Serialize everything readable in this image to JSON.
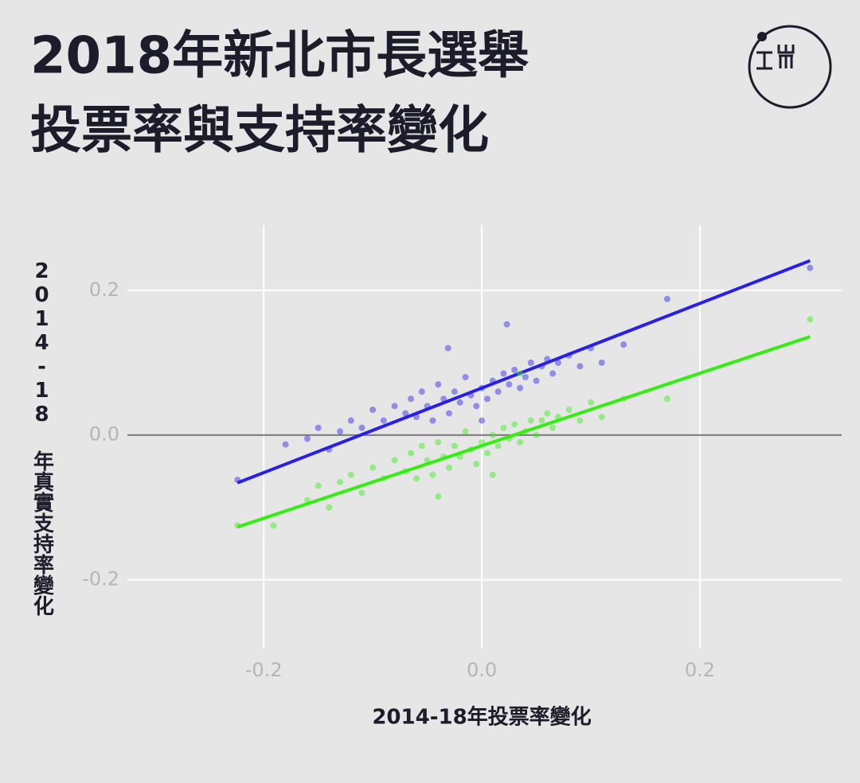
{
  "chart_data": {
    "type": "scatter",
    "title_lines": [
      "2018年新北市長選舉",
      "投票率與支持率變化"
    ],
    "x_label": "2014-18年投票率變化",
    "y_label": "2014-18 年真實支持率變化",
    "xlim": [
      -0.325,
      0.33
    ],
    "ylim": [
      -0.295,
      0.29
    ],
    "xticks": [
      {
        "value": -0.2,
        "label": "-0.2"
      },
      {
        "value": 0,
        "label": "0.0"
      },
      {
        "value": 0.2,
        "label": "0.2"
      }
    ],
    "yticks": [
      {
        "value": -0.2,
        "label": "-0.2"
      },
      {
        "value": 0,
        "label": "0.0"
      },
      {
        "value": 0.2,
        "label": "0.2"
      }
    ],
    "grid": true,
    "series": [
      {
        "color": "#2a1fe6",
        "x": [
          -0.224,
          -0.18,
          -0.16,
          -0.15,
          -0.14,
          -0.13,
          -0.12,
          -0.11,
          -0.1,
          -0.09,
          -0.08,
          -0.07,
          -0.065,
          -0.06,
          -0.055,
          -0.05,
          -0.045,
          -0.04,
          -0.035,
          -0.03,
          -0.025,
          -0.02,
          -0.015,
          -0.01,
          -0.005,
          0,
          0.005,
          0.01,
          0.015,
          0.02,
          0.025,
          0.03,
          0.035,
          0.04,
          0.045,
          0.05,
          0.055,
          0.06,
          0.065,
          0.07,
          0.08,
          0.09,
          0.1,
          0.11,
          0.13,
          0.17,
          0.301,
          0.023,
          -0.031,
          0
        ],
        "y": [
          -0.062,
          -0.013,
          -0.005,
          0.01,
          -0.02,
          0.005,
          0.02,
          0.01,
          0.035,
          0.02,
          0.04,
          0.03,
          0.05,
          0.025,
          0.06,
          0.04,
          0.02,
          0.07,
          0.05,
          0.03,
          0.06,
          0.045,
          0.08,
          0.055,
          0.04,
          0.065,
          0.05,
          0.075,
          0.06,
          0.085,
          0.07,
          0.09,
          0.065,
          0.08,
          0.1,
          0.075,
          0.095,
          0.105,
          0.085,
          0.1,
          0.11,
          0.095,
          0.12,
          0.1,
          0.125,
          0.188,
          0.231,
          0.153,
          0.12,
          0.02
        ],
        "fit_x": [
          -0.224,
          0.301
        ],
        "fit_y": [
          -0.066,
          0.241
        ]
      },
      {
        "color": "#33ee11",
        "x": [
          -0.224,
          -0.191,
          -0.16,
          -0.15,
          -0.14,
          -0.13,
          -0.12,
          -0.11,
          -0.1,
          -0.09,
          -0.08,
          -0.07,
          -0.065,
          -0.06,
          -0.055,
          -0.05,
          -0.045,
          -0.04,
          -0.035,
          -0.03,
          -0.025,
          -0.02,
          -0.015,
          -0.01,
          -0.005,
          0,
          0.005,
          0.01,
          0.015,
          0.02,
          0.025,
          0.03,
          0.035,
          0.04,
          0.045,
          0.05,
          0.055,
          0.06,
          0.065,
          0.07,
          0.08,
          0.09,
          0.1,
          0.11,
          0.13,
          0.17,
          0.301,
          0.035,
          -0.04,
          0.01
        ],
        "y": [
          -0.125,
          -0.125,
          -0.09,
          -0.07,
          -0.1,
          -0.065,
          -0.055,
          -0.08,
          -0.045,
          -0.06,
          -0.035,
          -0.05,
          -0.025,
          -0.06,
          -0.015,
          -0.035,
          -0.055,
          -0.01,
          -0.03,
          -0.045,
          -0.015,
          -0.03,
          0.005,
          -0.02,
          -0.04,
          -0.01,
          -0.025,
          0.0,
          -0.015,
          0.01,
          -0.005,
          0.015,
          -0.01,
          0.005,
          0.02,
          0.0,
          0.02,
          0.03,
          0.01,
          0.025,
          0.035,
          0.02,
          0.045,
          0.025,
          0.05,
          0.05,
          0.16,
          0.085,
          -0.085,
          -0.055
        ],
        "fit_x": [
          -0.224,
          0.301
        ],
        "fit_y": [
          -0.127,
          0.136
        ]
      }
    ]
  }
}
